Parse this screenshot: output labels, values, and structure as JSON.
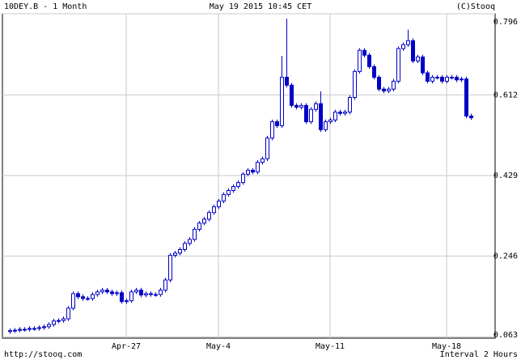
{
  "chart_data": {
    "type": "candlestick",
    "title": "10DEY.B - 1 Month",
    "date": "May 19 2015 10:45 CET",
    "source": "(C)Stooq",
    "url": "http://stooq.com",
    "interval": "Interval 2 Hours",
    "color": "#0000c8",
    "grid": true,
    "ylim": [
      0.06,
      0.796
    ],
    "yticks": [
      0.063,
      0.246,
      0.429,
      0.612,
      0.796
    ],
    "categories": [
      null,
      null,
      null,
      null,
      null,
      null,
      null,
      null,
      null,
      null,
      null,
      null,
      null,
      null,
      null,
      null,
      null,
      null,
      null,
      null,
      null,
      null,
      null,
      null,
      "Apr-27",
      null,
      null,
      null,
      null,
      null,
      null,
      null,
      null,
      null,
      null,
      null,
      null,
      null,
      null,
      null,
      null,
      null,
      null,
      "May-4",
      null,
      null,
      null,
      null,
      null,
      null,
      null,
      null,
      null,
      null,
      null,
      null,
      null,
      null,
      null,
      null,
      null,
      null,
      null,
      null,
      null,
      null,
      "May-11",
      null,
      null,
      null,
      null,
      null,
      null,
      null,
      null,
      null,
      null,
      null,
      null,
      null,
      null,
      null,
      null,
      null,
      null,
      null,
      null,
      null,
      null,
      null,
      "May-18",
      null,
      null,
      null,
      null,
      null
    ],
    "open": [
      0.075,
      0.077,
      0.078,
      0.08,
      0.08,
      0.082,
      0.082,
      0.084,
      0.086,
      0.091,
      0.099,
      0.1,
      0.104,
      0.128,
      0.161,
      0.154,
      0.15,
      0.15,
      0.159,
      0.165,
      0.169,
      0.165,
      0.161,
      0.163,
      0.143,
      0.145,
      0.165,
      0.169,
      0.158,
      0.161,
      0.159,
      0.159,
      0.169,
      0.192,
      0.248,
      0.253,
      0.261,
      0.275,
      0.284,
      0.307,
      0.321,
      0.33,
      0.345,
      0.358,
      0.371,
      0.386,
      0.395,
      0.404,
      0.413,
      0.432,
      0.441,
      0.437,
      0.459,
      0.467,
      0.514,
      0.551,
      0.542,
      0.652,
      0.634,
      0.588,
      0.584,
      0.588,
      0.551,
      0.579,
      0.592,
      0.533,
      0.551,
      0.555,
      0.573,
      0.57,
      0.573,
      0.606,
      0.665,
      0.713,
      0.702,
      0.676,
      0.652,
      0.625,
      0.621,
      0.625,
      0.643,
      0.717,
      0.726,
      0.735,
      0.689,
      0.698,
      0.662,
      0.643,
      0.652,
      0.652,
      0.643,
      0.652,
      0.652,
      0.646,
      0.648,
      0.564
    ],
    "high": [
      0.082,
      0.083,
      0.085,
      0.085,
      0.087,
      0.087,
      0.089,
      0.091,
      0.096,
      0.104,
      0.105,
      0.109,
      0.133,
      0.166,
      0.166,
      0.159,
      0.155,
      0.164,
      0.17,
      0.174,
      0.174,
      0.17,
      0.168,
      0.168,
      0.15,
      0.17,
      0.174,
      0.174,
      0.166,
      0.166,
      0.164,
      0.174,
      0.197,
      0.253,
      0.258,
      0.266,
      0.28,
      0.289,
      0.312,
      0.326,
      0.335,
      0.35,
      0.363,
      0.376,
      0.391,
      0.4,
      0.409,
      0.418,
      0.437,
      0.446,
      0.446,
      0.464,
      0.472,
      0.519,
      0.556,
      0.556,
      0.7,
      0.785,
      0.639,
      0.593,
      0.593,
      0.593,
      0.584,
      0.597,
      0.62,
      0.556,
      0.56,
      0.578,
      0.578,
      0.578,
      0.611,
      0.67,
      0.718,
      0.718,
      0.707,
      0.681,
      0.657,
      0.63,
      0.63,
      0.648,
      0.722,
      0.731,
      0.76,
      0.74,
      0.703,
      0.703,
      0.667,
      0.657,
      0.657,
      0.657,
      0.657,
      0.657,
      0.657,
      0.653,
      0.653,
      0.569
    ],
    "low": [
      0.07,
      0.072,
      0.073,
      0.075,
      0.075,
      0.077,
      0.077,
      0.079,
      0.081,
      0.086,
      0.094,
      0.095,
      0.099,
      0.123,
      0.149,
      0.145,
      0.145,
      0.145,
      0.154,
      0.16,
      0.16,
      0.156,
      0.156,
      0.138,
      0.138,
      0.14,
      0.16,
      0.153,
      0.153,
      0.154,
      0.154,
      0.154,
      0.164,
      0.187,
      0.243,
      0.248,
      0.256,
      0.27,
      0.279,
      0.302,
      0.316,
      0.325,
      0.34,
      0.353,
      0.366,
      0.381,
      0.39,
      0.399,
      0.408,
      0.427,
      0.432,
      0.432,
      0.454,
      0.462,
      0.509,
      0.537,
      0.537,
      0.629,
      0.583,
      0.579,
      0.579,
      0.546,
      0.546,
      0.574,
      0.528,
      0.528,
      0.546,
      0.55,
      0.565,
      0.565,
      0.568,
      0.601,
      0.66,
      0.697,
      0.671,
      0.647,
      0.62,
      0.616,
      0.616,
      0.62,
      0.638,
      0.712,
      0.721,
      0.684,
      0.684,
      0.657,
      0.638,
      0.638,
      0.647,
      0.638,
      0.638,
      0.647,
      0.641,
      0.641,
      0.559,
      0.555
    ],
    "close": [
      0.077,
      0.078,
      0.08,
      0.08,
      0.082,
      0.082,
      0.084,
      0.086,
      0.091,
      0.099,
      0.1,
      0.104,
      0.128,
      0.161,
      0.154,
      0.15,
      0.15,
      0.159,
      0.165,
      0.169,
      0.165,
      0.161,
      0.163,
      0.143,
      0.145,
      0.165,
      0.169,
      0.158,
      0.161,
      0.159,
      0.159,
      0.169,
      0.192,
      0.248,
      0.253,
      0.261,
      0.275,
      0.284,
      0.307,
      0.321,
      0.33,
      0.345,
      0.358,
      0.371,
      0.386,
      0.395,
      0.404,
      0.413,
      0.432,
      0.441,
      0.437,
      0.459,
      0.467,
      0.514,
      0.551,
      0.542,
      0.652,
      0.634,
      0.588,
      0.584,
      0.588,
      0.551,
      0.579,
      0.592,
      0.533,
      0.551,
      0.555,
      0.573,
      0.57,
      0.573,
      0.606,
      0.665,
      0.713,
      0.702,
      0.676,
      0.652,
      0.625,
      0.621,
      0.625,
      0.643,
      0.717,
      0.726,
      0.735,
      0.689,
      0.698,
      0.662,
      0.643,
      0.652,
      0.652,
      0.643,
      0.652,
      0.652,
      0.646,
      0.648,
      0.564,
      0.56
    ]
  }
}
